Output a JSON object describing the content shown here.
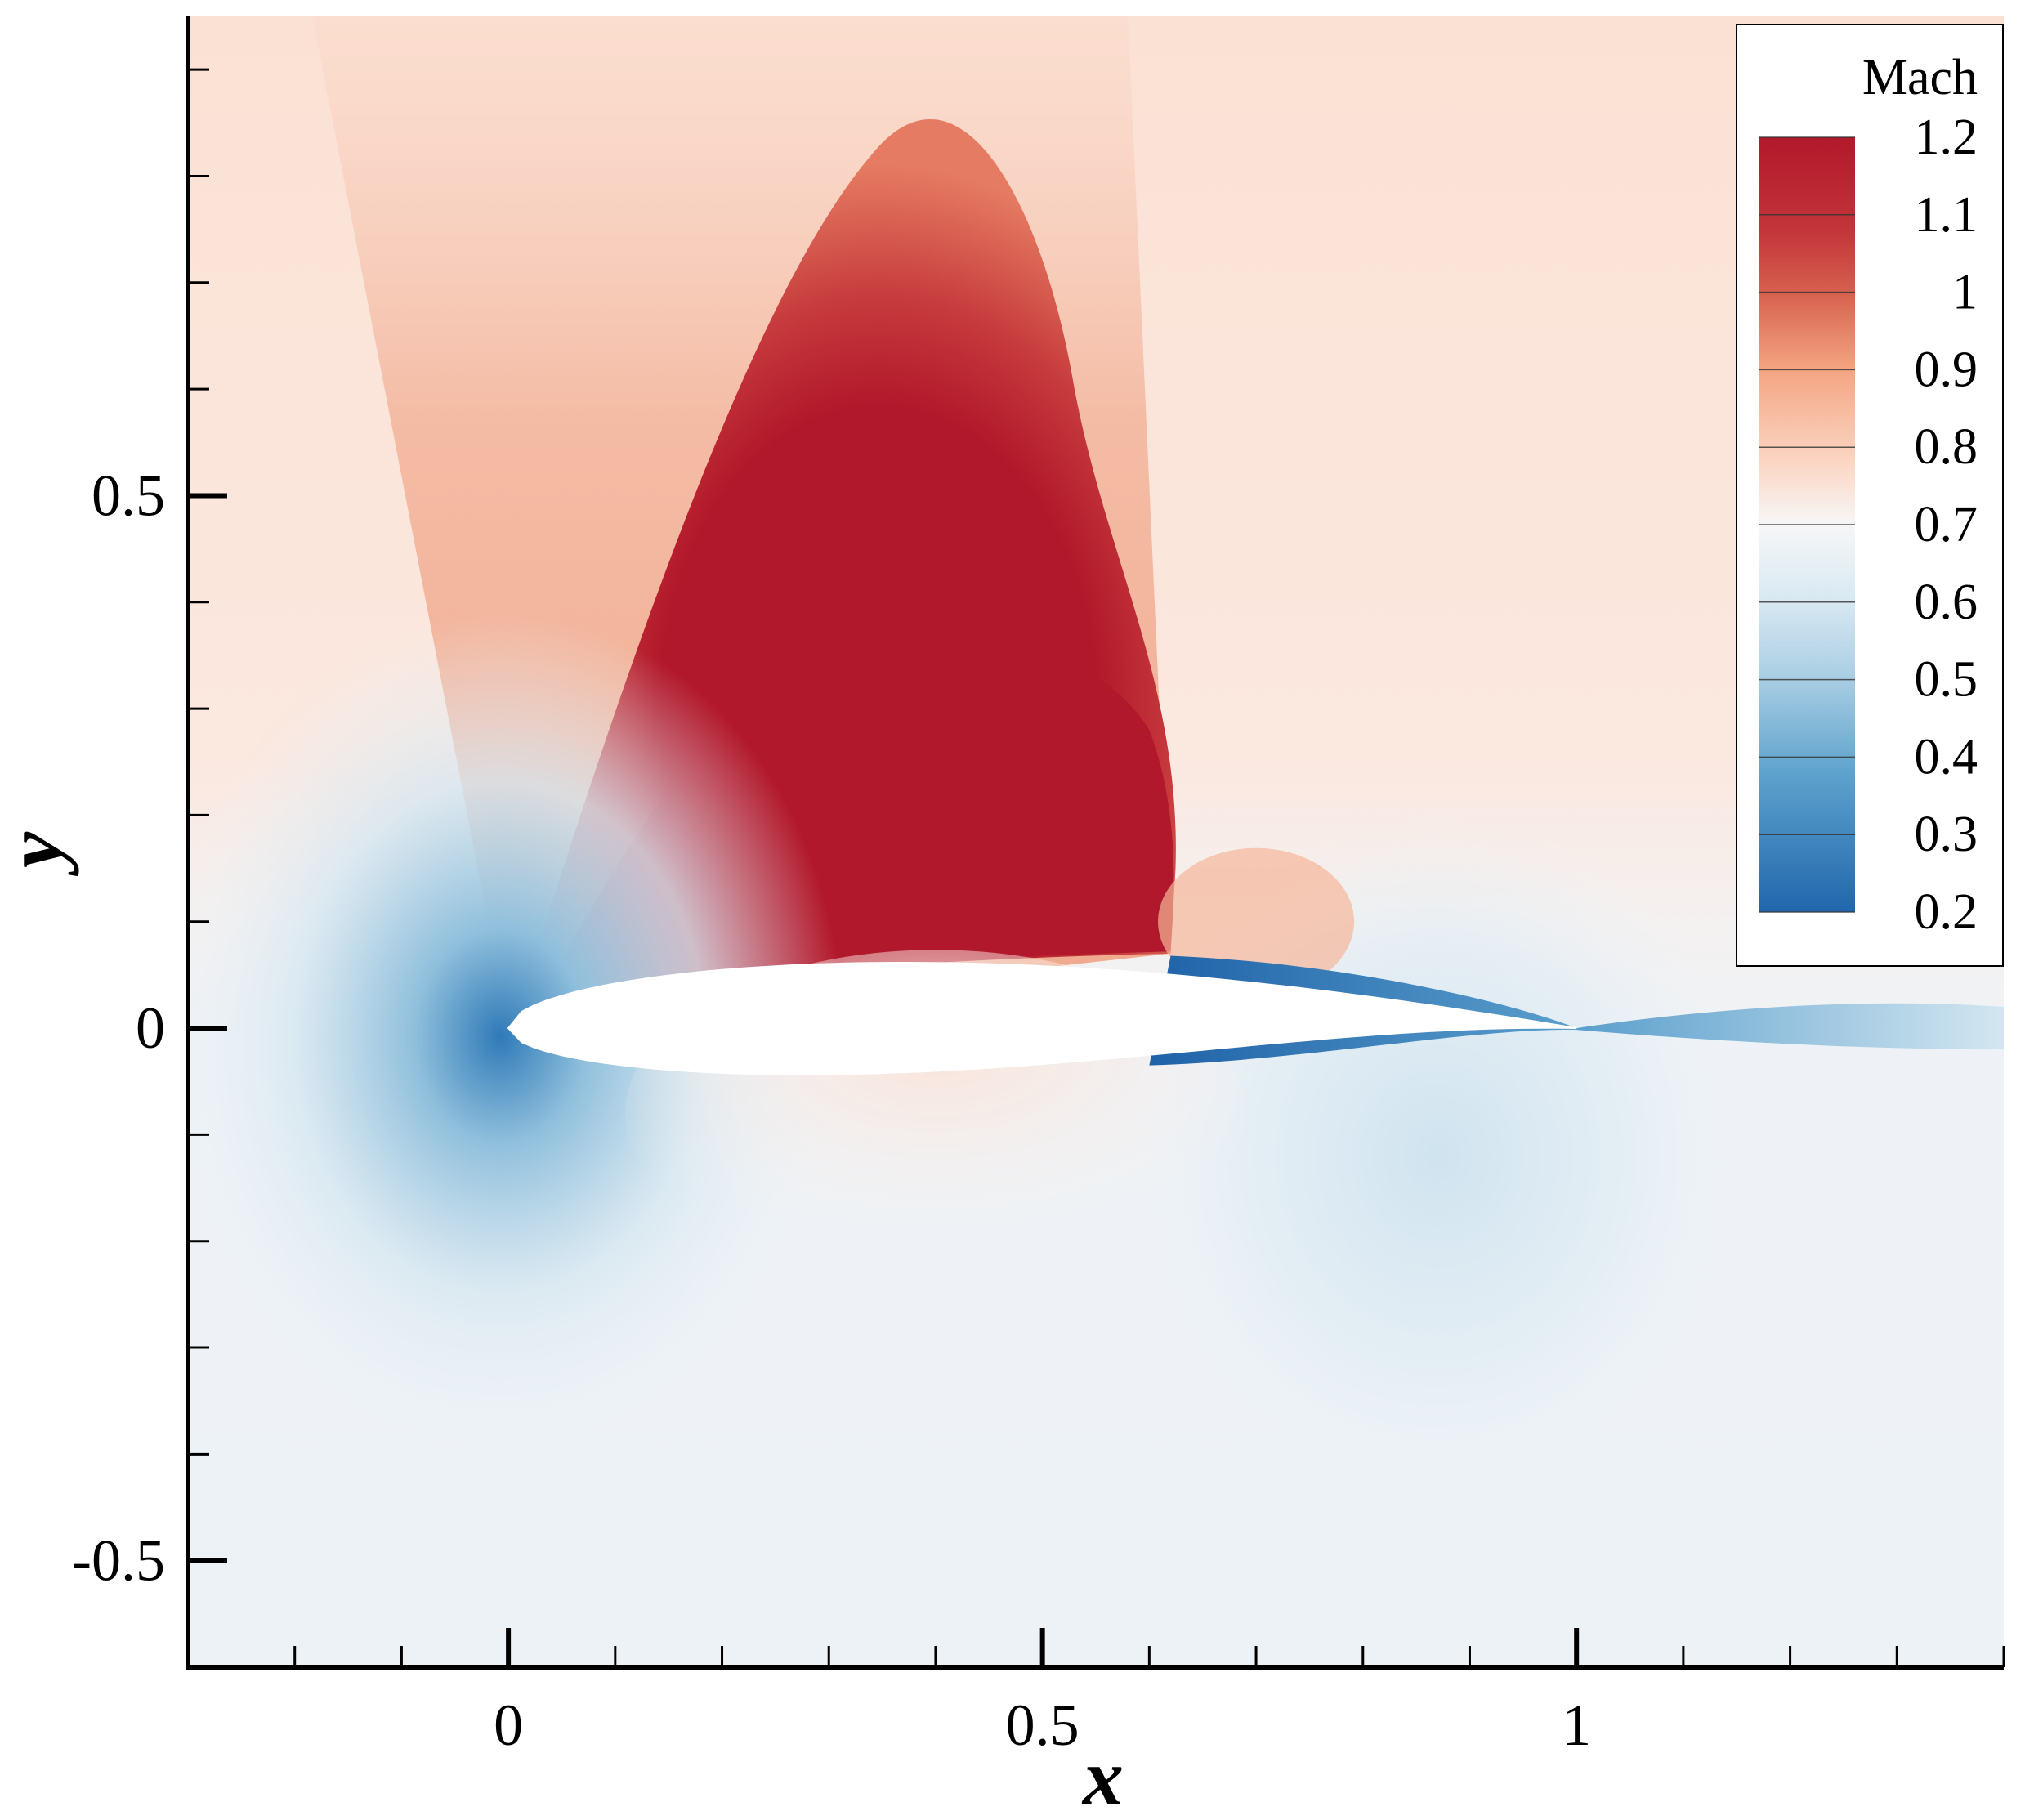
{
  "chart_data": {
    "type": "heatmap",
    "title": "",
    "xlabel": "x",
    "ylabel": "y",
    "xlim": [
      -0.3,
      1.4
    ],
    "ylim": [
      -0.6,
      0.95
    ],
    "x_ticks": [
      {
        "value": 0,
        "label": "0"
      },
      {
        "value": 0.5,
        "label": "0.5"
      },
      {
        "value": 1,
        "label": "1"
      }
    ],
    "y_ticks": [
      {
        "value": 0.5,
        "label": "0.5"
      },
      {
        "value": 0,
        "label": "0"
      },
      {
        "value": -0.5,
        "label": "-0.5"
      }
    ],
    "x_minor_step": 0.1,
    "y_minor_step": 0.1,
    "grid": false,
    "colorbar": {
      "title": "Mach",
      "min": 0.2,
      "max": 1.2,
      "levels": [
        "1.2",
        "1.1",
        "1",
        "0.9",
        "0.8",
        "0.7",
        "0.6",
        "0.5",
        "0.4",
        "0.3",
        "0.2"
      ],
      "colors": {
        "0.2": "#2166ac",
        "0.35": "#4393c3",
        "0.5": "#92c5de",
        "0.6": "#d1e5f0",
        "0.7": "#f7f7f7",
        "0.8": "#fddbc7",
        "0.9": "#f4a582",
        "1.05": "#d6604d",
        "1.2": "#b2182b"
      },
      "placement": "top-right"
    },
    "field_features": {
      "supersonic_region_peak": 1.2,
      "airfoil_leading_edge_x": 0,
      "airfoil_trailing_edge_x": 1,
      "shock_x_at_surface": 0.62,
      "wake_mach_min": 0.2
    }
  }
}
